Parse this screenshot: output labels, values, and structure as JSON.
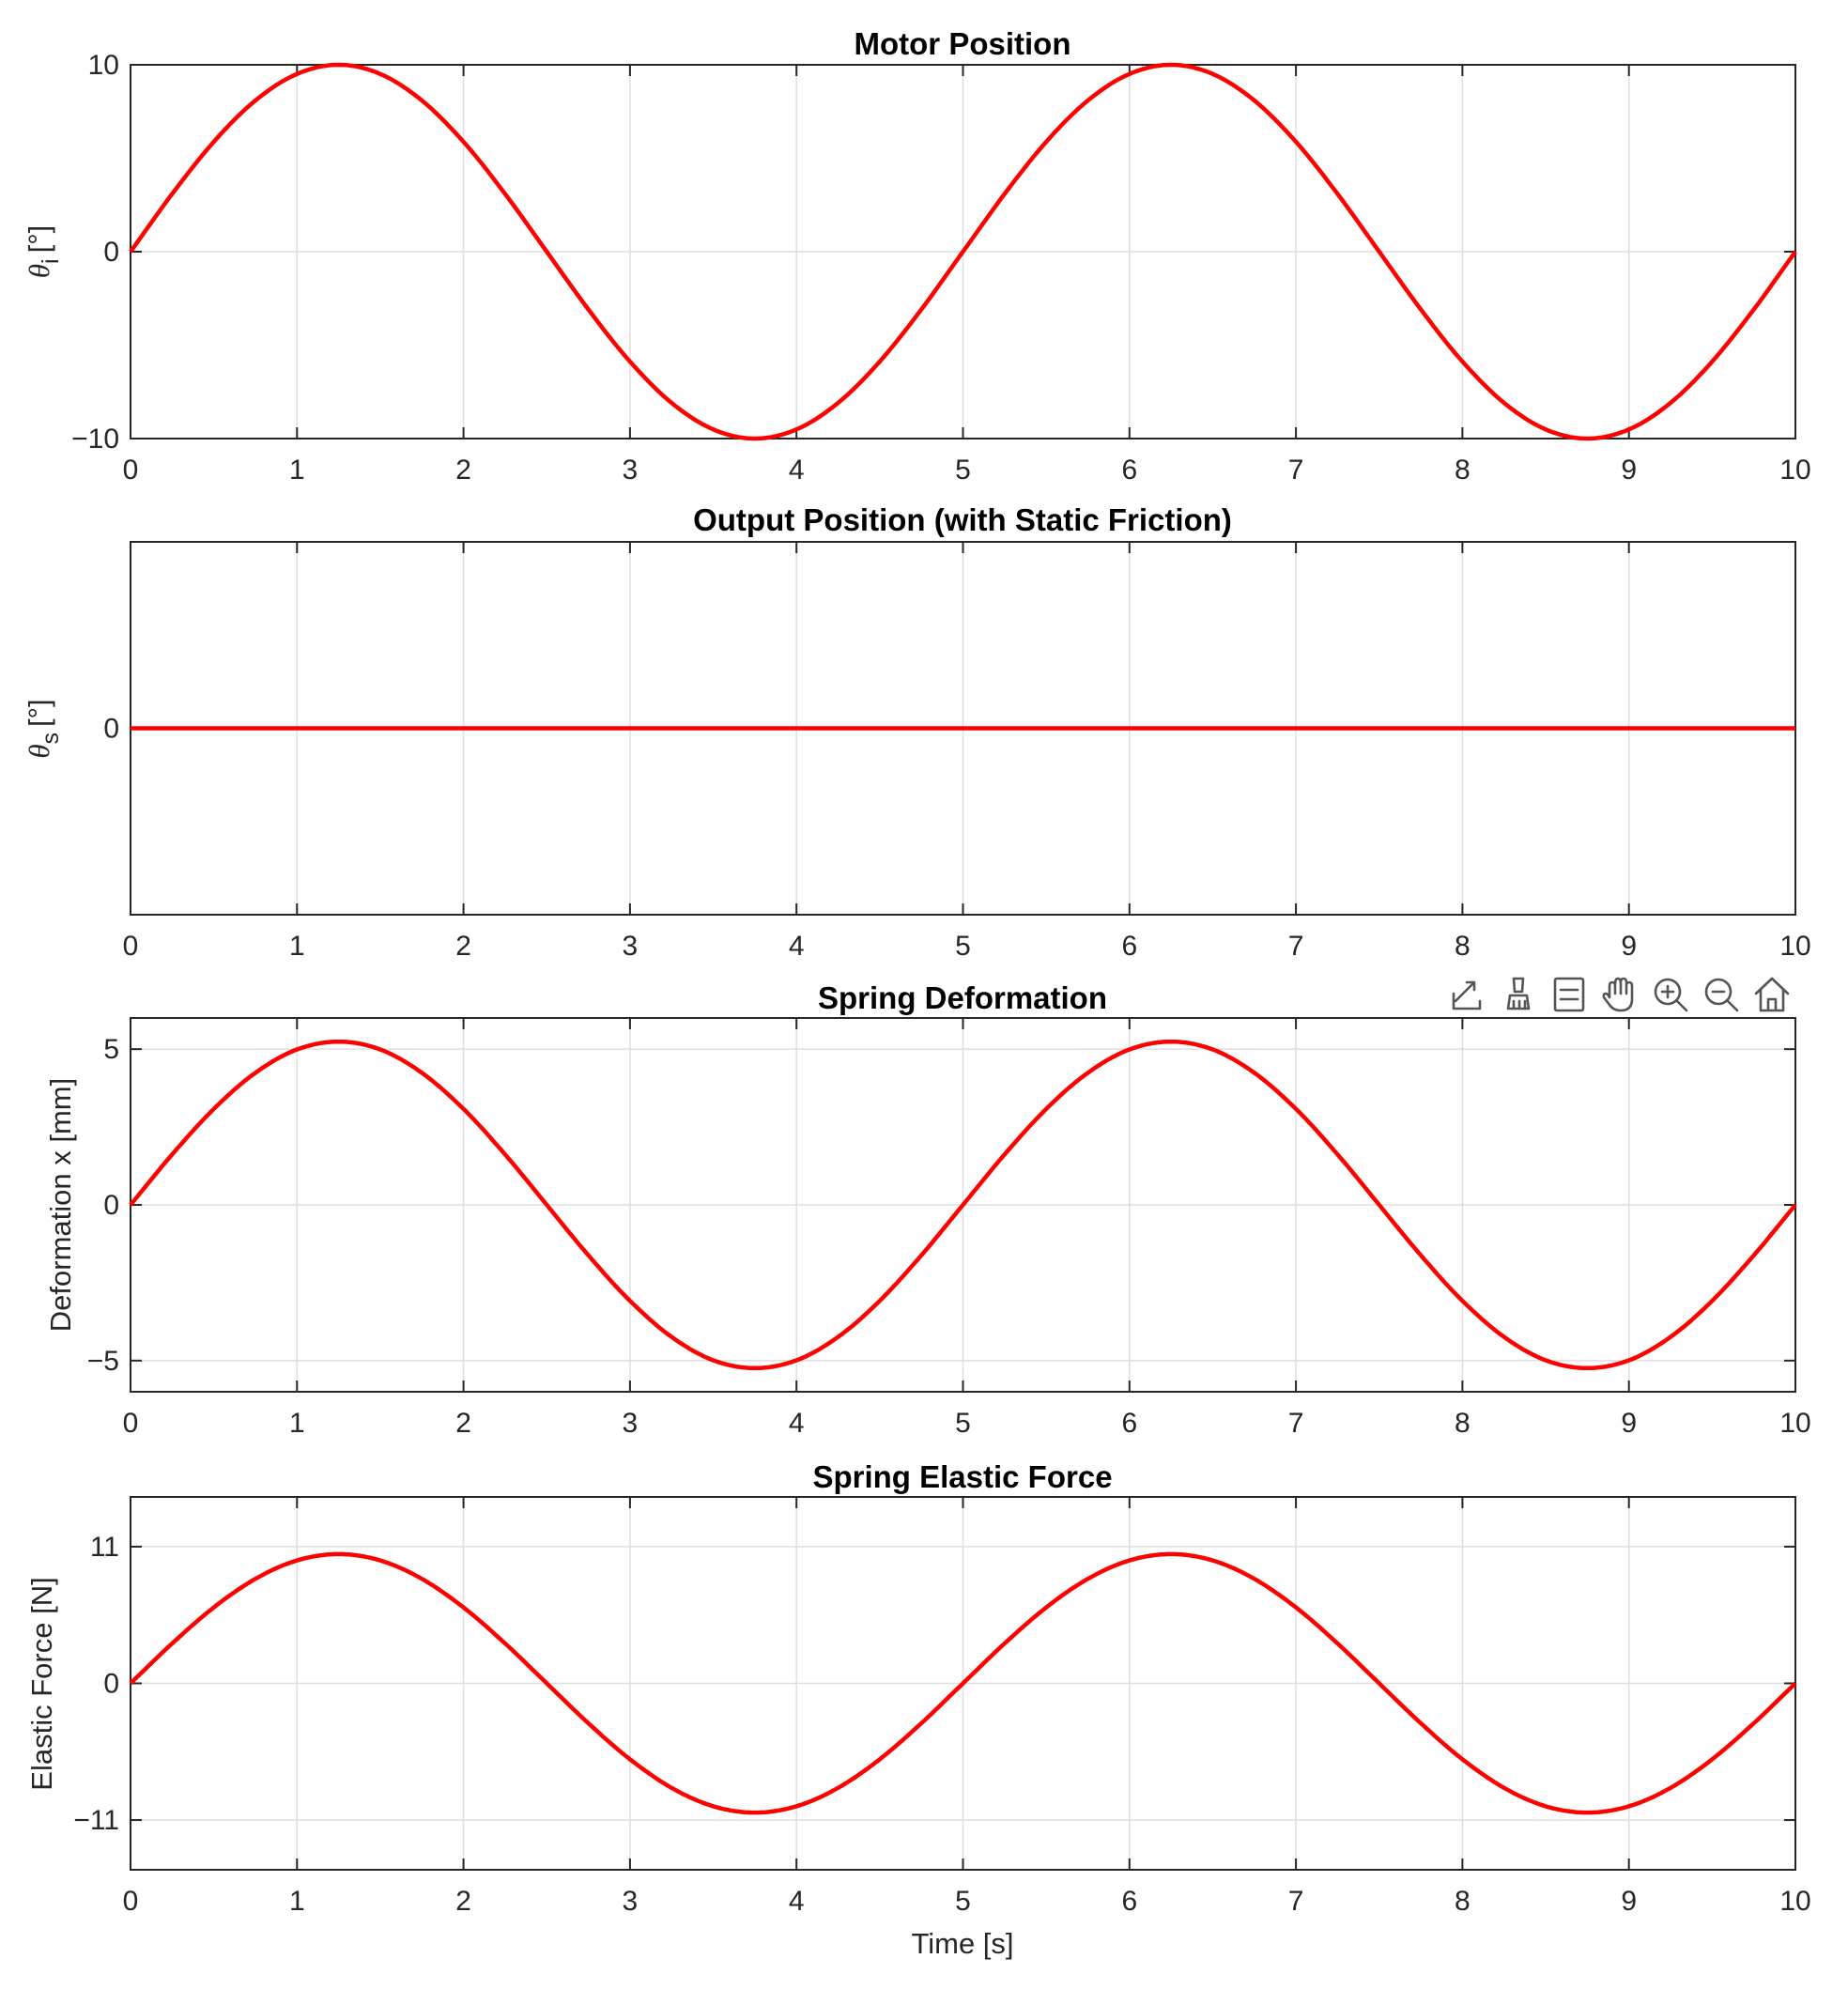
{
  "series_color": "#ff0000",
  "toolbar": {
    "attached_to_chart": 2,
    "icons": [
      "export-icon",
      "brush-icon",
      "legend-icon",
      "pan-hand-icon",
      "zoom-in-icon",
      "zoom-out-icon",
      "home-icon"
    ]
  },
  "chart_data": [
    {
      "type": "line",
      "title": "Motor Position",
      "xlabel": "",
      "ylabel": {
        "symbol": "θ",
        "subscript": "i",
        "unit": "[°]"
      },
      "xlim": [
        0,
        10
      ],
      "ylim": [
        -10,
        10
      ],
      "xticks": [
        0,
        1,
        2,
        3,
        4,
        5,
        6,
        7,
        8,
        9,
        10
      ],
      "yticks": [
        -10,
        0,
        10
      ],
      "yticklabels": [
        "−10",
        "0",
        "10"
      ],
      "grid": true,
      "series": [
        {
          "x": [
            0,
            0.25,
            0.5,
            0.75,
            1,
            1.25,
            1.5,
            1.75,
            2,
            2.25,
            2.5,
            2.75,
            3,
            3.25,
            3.5,
            3.75,
            4,
            4.25,
            4.5,
            4.75,
            5,
            5.25,
            5.5,
            5.75,
            6,
            6.25,
            6.5,
            6.75,
            7,
            7.25,
            7.5,
            7.75,
            8,
            8.25,
            8.5,
            8.75,
            9,
            9.25,
            9.5,
            9.75,
            10
          ],
          "y": [
            0,
            3.09,
            5.88,
            8.09,
            9.51,
            10,
            9.51,
            8.09,
            5.88,
            3.09,
            0,
            -3.09,
            -5.88,
            -8.09,
            -9.51,
            -10,
            -9.51,
            -8.09,
            -5.88,
            -3.09,
            0,
            3.09,
            5.88,
            8.09,
            9.51,
            10,
            9.51,
            8.09,
            5.88,
            3.09,
            0,
            -3.09,
            -5.88,
            -8.09,
            -9.51,
            -10,
            -9.51,
            -8.09,
            -5.88,
            -3.09,
            0
          ]
        }
      ]
    },
    {
      "type": "line",
      "title": "Output Position (with Static Friction)",
      "xlabel": "",
      "ylabel": {
        "symbol": "θ",
        "subscript": "s",
        "unit": "[°]"
      },
      "xlim": [
        0,
        10
      ],
      "ylim": [
        -1,
        1
      ],
      "xticks": [
        0,
        1,
        2,
        3,
        4,
        5,
        6,
        7,
        8,
        9,
        10
      ],
      "yticks": [
        0
      ],
      "yticklabels": [
        "0"
      ],
      "grid": true,
      "series": [
        {
          "x": [
            0,
            10
          ],
          "y": [
            0,
            0
          ]
        }
      ]
    },
    {
      "type": "line",
      "title": "Spring Deformation",
      "xlabel": "",
      "ylabel": {
        "text": "Deformation x [mm]"
      },
      "xlim": [
        0,
        10
      ],
      "ylim": [
        -6,
        6
      ],
      "xticks": [
        0,
        1,
        2,
        3,
        4,
        5,
        6,
        7,
        8,
        9,
        10
      ],
      "yticks": [
        -5,
        0,
        5
      ],
      "yticklabels": [
        "−5",
        "0",
        "5"
      ],
      "grid": true,
      "series": [
        {
          "x": [
            0,
            0.25,
            0.5,
            0.75,
            1,
            1.25,
            1.5,
            1.75,
            2,
            2.25,
            2.5,
            2.75,
            3,
            3.25,
            3.5,
            3.75,
            4,
            4.25,
            4.5,
            4.75,
            5,
            5.25,
            5.5,
            5.75,
            6,
            6.25,
            6.5,
            6.75,
            7,
            7.25,
            7.5,
            7.75,
            8,
            8.25,
            8.5,
            8.75,
            9,
            9.25,
            9.5,
            9.75,
            10
          ],
          "y": [
            0,
            1.62,
            3.08,
            4.24,
            4.99,
            5.24,
            4.99,
            4.24,
            3.08,
            1.62,
            0,
            -1.62,
            -3.08,
            -4.24,
            -4.99,
            -5.24,
            -4.99,
            -4.24,
            -3.08,
            -1.62,
            0,
            1.62,
            3.08,
            4.24,
            4.99,
            5.24,
            4.99,
            4.24,
            3.08,
            1.62,
            0,
            -1.62,
            -3.08,
            -4.24,
            -4.99,
            -5.24,
            -4.99,
            -4.24,
            -3.08,
            -1.62,
            0
          ]
        }
      ]
    },
    {
      "type": "line",
      "title": "Spring Elastic Force",
      "xlabel": "Time [s]",
      "ylabel": {
        "text": "Elastic Force [N]"
      },
      "xlim": [
        0,
        10
      ],
      "ylim": [
        -15,
        15
      ],
      "xticks": [
        0,
        1,
        2,
        3,
        4,
        5,
        6,
        7,
        8,
        9,
        10
      ],
      "yticks": [
        -11,
        0,
        11
      ],
      "yticklabels": [
        "−11",
        "0",
        "11"
      ],
      "grid": true,
      "series": [
        {
          "x": [
            0,
            0.25,
            0.5,
            0.75,
            1,
            1.25,
            1.5,
            1.75,
            2,
            2.25,
            2.5,
            2.75,
            3,
            3.25,
            3.5,
            3.75,
            4,
            4.25,
            4.5,
            4.75,
            5,
            5.25,
            5.5,
            5.75,
            6,
            6.25,
            6.5,
            6.75,
            7,
            7.25,
            7.5,
            7.75,
            8,
            8.25,
            8.5,
            8.75,
            9,
            9.25,
            9.5,
            9.75,
            10
          ],
          "y": [
            0,
            3.21,
            6.11,
            8.41,
            9.89,
            10.4,
            9.89,
            8.41,
            6.11,
            3.21,
            0,
            -3.21,
            -6.11,
            -8.41,
            -9.89,
            -10.4,
            -9.89,
            -8.41,
            -6.11,
            -3.21,
            0,
            3.21,
            6.11,
            8.41,
            9.89,
            10.4,
            9.89,
            8.41,
            6.11,
            3.21,
            0,
            -3.21,
            -6.11,
            -8.41,
            -9.89,
            -10.4,
            -9.89,
            -8.41,
            -6.11,
            -3.21,
            0
          ]
        }
      ]
    }
  ]
}
